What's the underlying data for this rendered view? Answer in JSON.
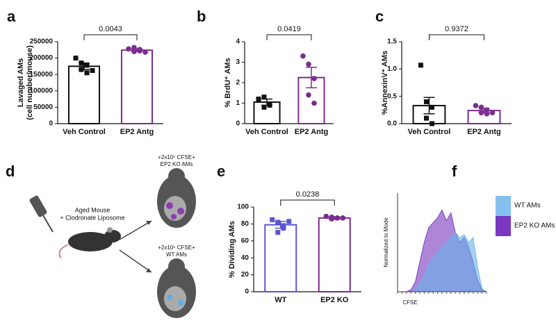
{
  "chart_data": [
    {
      "type": "bar",
      "panel": "a",
      "ylabel": [
        "Lavaged AMs",
        "(cell number/mouse)"
      ],
      "categories": [
        "Veh Control",
        "EP2 Antg"
      ],
      "values": [
        175000,
        224000
      ],
      "errors": [
        10000,
        4000
      ],
      "points": [
        [
          200000,
          185000,
          178000,
          165000,
          155000,
          162000
        ],
        [
          228000,
          232000,
          222000,
          220000,
          226000,
          218000
        ]
      ],
      "colors": [
        "#111111",
        "#7b2d8e"
      ],
      "markers": [
        "square",
        "circle"
      ],
      "ylim": [
        0,
        250000
      ],
      "yticks": [
        0,
        50000,
        100000,
        150000,
        200000,
        250000
      ],
      "comparison": "0.0043"
    },
    {
      "type": "bar",
      "panel": "b",
      "ylabel": "% BrdU⁺ AMs",
      "categories": [
        "Veh Control",
        "EP2 Antg"
      ],
      "values": [
        1.05,
        2.25
      ],
      "errors": [
        0.15,
        0.5
      ],
      "points": [
        [
          1.2,
          1.3,
          0.95,
          0.8,
          0.9
        ],
        [
          3.3,
          2.9,
          2.2,
          1.4,
          1.0
        ]
      ],
      "colors": [
        "#111111",
        "#7b2d8e"
      ],
      "markers": [
        "square",
        "circle"
      ],
      "ylim": [
        0,
        4
      ],
      "yticks": [
        0,
        1,
        2,
        3,
        4
      ],
      "comparison": "0.0419"
    },
    {
      "type": "bar",
      "panel": "c",
      "ylabel": "%AnnexinV⁺ AMs",
      "categories": [
        "Veh Control",
        "EP2 Antg"
      ],
      "values": [
        0.33,
        0.24
      ],
      "errors": [
        0.15,
        0.04
      ],
      "points": [
        [
          1.07,
          0.4,
          0.3,
          0.1,
          0.0
        ],
        [
          0.33,
          0.3,
          0.25,
          0.2,
          0.18,
          0.2
        ]
      ],
      "colors": [
        "#111111",
        "#7b2d8e"
      ],
      "markers": [
        "square",
        "circle"
      ],
      "ylim": [
        0,
        1.5
      ],
      "yticks": [
        {
          "value": 0,
          "label": "0.0"
        },
        0.5,
        {
          "value": 1,
          "label": "1.0"
        },
        1.5
      ],
      "comparison": "0.9372"
    },
    {
      "type": "bar",
      "panel": "e",
      "ylabel": "% Dividing AMs",
      "categories": [
        "WT",
        "EP2 KO"
      ],
      "values": [
        79,
        87
      ],
      "errors": [
        4,
        1.5
      ],
      "points": [
        [
          85,
          82,
          78,
          70,
          75,
          83
        ],
        [
          89,
          88,
          87,
          86,
          87,
          87
        ]
      ],
      "colors": [
        "#5a55d0",
        "#7b2d8e"
      ],
      "markers": [
        "square",
        "circle"
      ],
      "ylim": [
        0,
        100
      ],
      "yticks": [
        0,
        20,
        40,
        60,
        80,
        100
      ],
      "comparison": "0.0238"
    },
    {
      "type": "area",
      "panel": "f",
      "ylabel": "Normalized to Mode",
      "xlabel": "CFSE",
      "x": [
        0,
        5,
        10,
        15,
        20,
        25,
        30,
        35,
        40,
        45,
        50,
        55,
        60,
        65,
        70,
        75,
        80,
        85,
        90,
        95,
        100
      ],
      "xlim": [
        0,
        100
      ],
      "ylim": [
        0,
        100
      ],
      "series": [
        {
          "name": "EP2 KO AMs",
          "color": "#6a22b8",
          "values": [
            0,
            0,
            0,
            2,
            10,
            30,
            50,
            65,
            70,
            75,
            83,
            72,
            80,
            60,
            50,
            55,
            45,
            30,
            12,
            2,
            0
          ]
        },
        {
          "name": "WT AMs",
          "color": "#66b2ea",
          "values": [
            0,
            0,
            0,
            0,
            2,
            8,
            18,
            28,
            35,
            40,
            45,
            50,
            55,
            60,
            55,
            58,
            50,
            55,
            25,
            3,
            0
          ]
        }
      ]
    }
  ],
  "diagram": {
    "panel": "d",
    "labels": [
      "Aged Mouse",
      "+ Clodronate Liposome",
      "+2x10⁵ CFSE+",
      "EP2 KO AMs",
      "+2x10⁵ CFSE+",
      "WT AMs"
    ]
  }
}
